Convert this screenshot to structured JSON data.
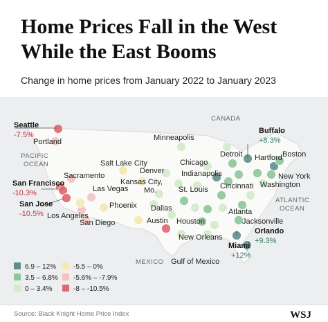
{
  "header": {
    "title": [
      "Home Prices Fall in the West",
      "While the East Booms"
    ],
    "subtitle": "Change in home prices from January 2022 to January 2023"
  },
  "map": {
    "countries": [
      "CANADA",
      "MEXICO"
    ],
    "water": {
      "pacific": [
        "PACIFIC",
        "OCEAN"
      ],
      "atlantic": [
        "ATLANTIC",
        "OCEAN"
      ],
      "gulf": "Gulf of Mexico"
    },
    "cities": [
      "Portland",
      "Sacramento",
      "Salt Lake City",
      "Las Vegas",
      "Los Angeles",
      "San Diego",
      "Phoenix",
      "Denver",
      "Minneapolis",
      "Chicago",
      "Detroit",
      "Indianapolis",
      "St. Louis",
      "Cincinnati",
      "Dallas",
      "Austin",
      "Houston",
      "New Orleans",
      "Atlanta",
      "Jacksonville",
      "Hartford",
      "Boston",
      "New York",
      "Washington"
    ],
    "kansas_city": [
      "Kansas City,",
      "Mo."
    ],
    "highlights": [
      {
        "name": "Seattle",
        "change": "-7.5%"
      },
      {
        "name": "San Francisco",
        "change": "-10.3%"
      },
      {
        "name": "San Jose",
        "change": "-10.5%"
      },
      {
        "name": "Buffalo",
        "change": "+8.3%"
      },
      {
        "name": "Orlando",
        "change": "+9.3%"
      },
      {
        "name": "Miami",
        "change": "+12%"
      }
    ]
  },
  "legend": [
    {
      "label": "6.9 – 12%",
      "color": "#5f8f8c"
    },
    {
      "label": "3.5 – 6.8%",
      "color": "#8ec79b"
    },
    {
      "label": "0 – 3.4%",
      "color": "#d3eacb"
    },
    {
      "label": "-5.5 – 0%",
      "color": "#f4e9b0"
    },
    {
      "label": "-5.6% – -7.9%",
      "color": "#f2c4c1"
    },
    {
      "label": "-8 – -10.5%",
      "color": "#e0676e"
    }
  ],
  "footer": {
    "source": "Source: Black Knight Home Price Index",
    "logo": "WSJ"
  }
}
